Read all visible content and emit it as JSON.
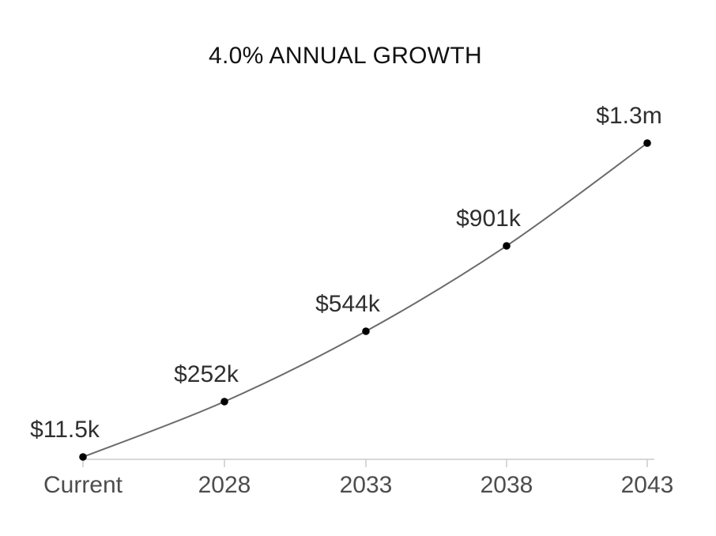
{
  "chart": {
    "title": "4.0% ANNUAL GROWTH"
  },
  "chart_data": {
    "type": "line",
    "title": "4.0% ANNUAL GROWTH",
    "categories": [
      "Current",
      "2028",
      "2033",
      "2038",
      "2043"
    ],
    "series": [
      {
        "name": "projected-value",
        "values_usd": [
          11500,
          252000,
          544000,
          901000,
          1300000
        ],
        "point_labels": [
          "$11.5k",
          "$252k",
          "$544k",
          "$901k",
          "$1.3m"
        ]
      }
    ],
    "xlabel": "",
    "ylabel": "",
    "grid": false,
    "legend": "none",
    "annotations": "each data point labeled with its dollar value above-left of the marker",
    "colors": {
      "title": "#111111",
      "line": "#6b6b6b",
      "point": "#000000",
      "point_label": "#2f2f2f",
      "axis": "#cbcbcb",
      "axis_label": "#4d4d4d",
      "background": "#ffffff"
    }
  }
}
